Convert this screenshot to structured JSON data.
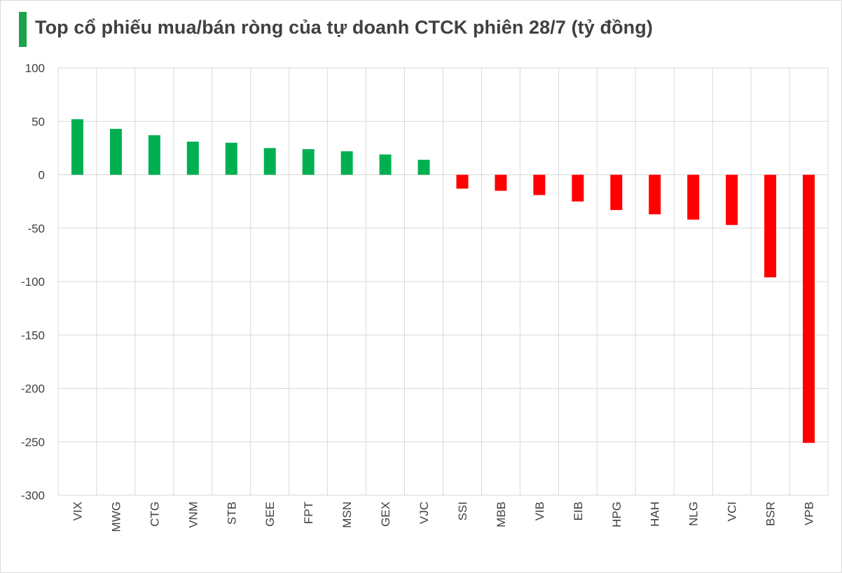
{
  "title": "Top cổ phiếu mua/bán ròng của tự doanh CTCK phiên 28/7 (tỷ đồng)",
  "colors": {
    "positive": "#00b050",
    "negative": "#ff0000",
    "title_accent": "#1aa34a",
    "grid": "#d9d9d9",
    "text": "#404040"
  },
  "chart_data": {
    "type": "bar",
    "title": "Top cổ phiếu mua/bán ròng của tự doanh CTCK phiên 28/7 (tỷ đồng)",
    "xlabel": "",
    "ylabel": "",
    "categories": [
      "VIX",
      "MWG",
      "CTG",
      "VNM",
      "STB",
      "GEE",
      "FPT",
      "MSN",
      "GEX",
      "VJC",
      "SSI",
      "MBB",
      "VIB",
      "EIB",
      "HPG",
      "HAH",
      "NLG",
      "VCI",
      "BSR",
      "VPB"
    ],
    "values": [
      52,
      43,
      37,
      31,
      30,
      25,
      24,
      22,
      19,
      14,
      -13,
      -15,
      -19,
      -25,
      -33,
      -37,
      -42,
      -47,
      -96,
      -251
    ],
    "ylim": [
      -300,
      100
    ],
    "yticks": [
      100,
      50,
      0,
      -50,
      -100,
      -150,
      -200,
      -250,
      -300
    ],
    "grid": true,
    "legend": "none"
  }
}
